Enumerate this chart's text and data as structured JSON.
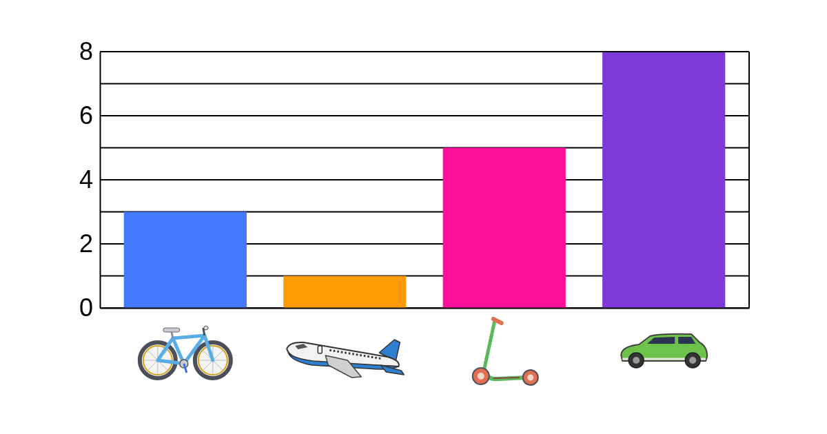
{
  "chart_data": {
    "type": "bar",
    "categories": [
      null,
      null,
      null,
      null
    ],
    "values": [
      3,
      1,
      5,
      8
    ],
    "colors": [
      "#4479fe",
      "#fe9b06",
      "#fc0f9b",
      "#7f39d8"
    ],
    "ylim": [
      0,
      8
    ],
    "yticks": [
      0,
      {
        "value": 1,
        "label": null
      },
      2,
      {
        "value": 3,
        "label": null
      },
      4,
      {
        "value": 5,
        "label": null
      },
      6,
      {
        "value": 7,
        "label": null
      },
      8
    ],
    "grid": "y"
  }
}
